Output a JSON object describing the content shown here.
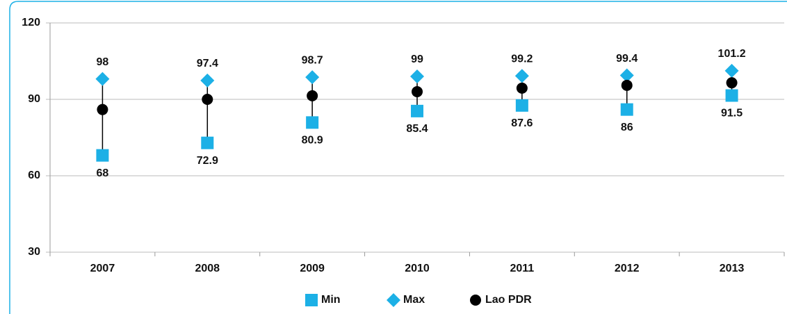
{
  "chart_data": {
    "type": "highlow",
    "categories": [
      "2007",
      "2008",
      "2009",
      "2010",
      "2011",
      "2012",
      "2013"
    ],
    "series": [
      {
        "name": "Min",
        "color": "#1cb0e6",
        "marker": "square",
        "values": [
          68,
          72.9,
          80.9,
          85.4,
          87.6,
          86,
          91.5
        ]
      },
      {
        "name": "Max",
        "color": "#1cb0e6",
        "marker": "diamond",
        "values": [
          98,
          97.4,
          98.7,
          99,
          99.2,
          99.4,
          101.2
        ]
      },
      {
        "name": "Lao PDR",
        "color": "#000000",
        "marker": "circle",
        "values": [
          86,
          90,
          91.4,
          93,
          94.4,
          95.5,
          96.5
        ]
      }
    ],
    "ylim": [
      30,
      120
    ],
    "yticks": [
      30,
      60,
      90,
      120
    ],
    "grid": true,
    "legend": "bottom"
  }
}
